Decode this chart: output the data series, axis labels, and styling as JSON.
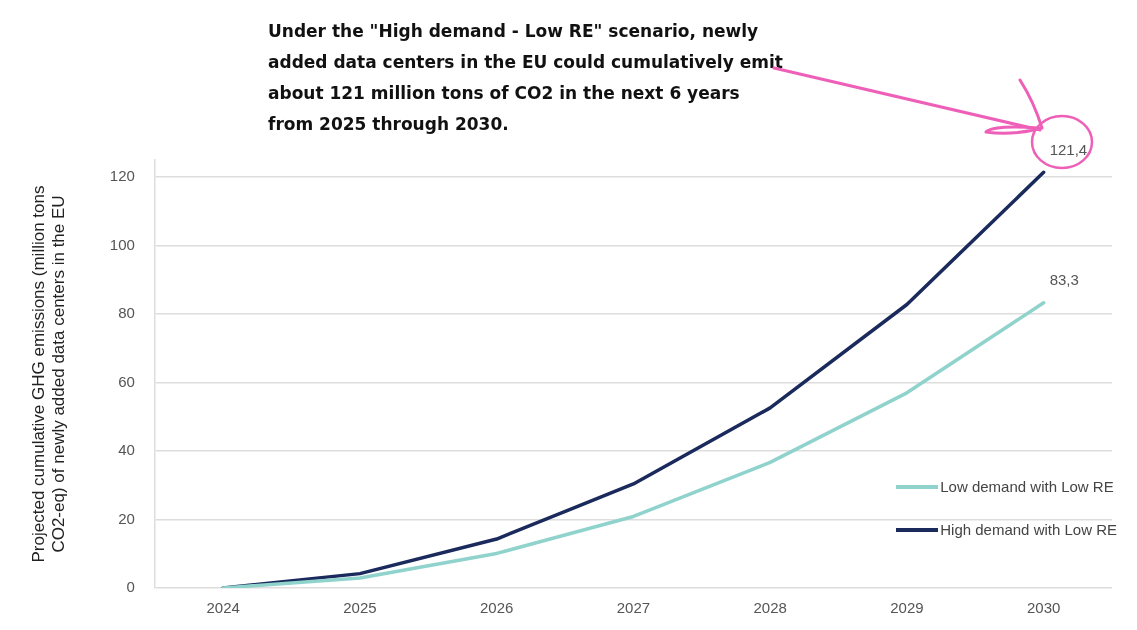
{
  "chart_data": {
    "type": "line",
    "ylabel": "Projected cumulative GHG emissions (million tons CO2-eq) of newly added data centers in the EU",
    "categories": [
      "2024",
      "2025",
      "2026",
      "2027",
      "2028",
      "2029",
      "2030"
    ],
    "series": [
      {
        "name": "Low demand with Low RE",
        "color": "#8fd3cc",
        "values": [
          0,
          2.9,
          10.1,
          20.9,
          36.7,
          57,
          83.3
        ],
        "value_labels": [
          null,
          null,
          null,
          null,
          null,
          null,
          "83,3"
        ]
      },
      {
        "name": "High demand with Low RE",
        "color": "#1b2a5c",
        "values": [
          0,
          4.2,
          14.3,
          30.4,
          52.6,
          82.8,
          121.4
        ],
        "value_labels": [
          null,
          null,
          null,
          null,
          null,
          null,
          "121,4"
        ]
      }
    ],
    "ylim": [
      0,
      125
    ],
    "yticks": [
      0,
      20,
      40,
      60,
      80,
      100,
      120
    ],
    "grid": "y",
    "legend": "bottom right",
    "marker": "none",
    "line_style": "solid",
    "annotations": [
      "Under the \"High demand - Low RE\" scenario, newly added data centers in the EU could cumulatively emit about 121 million tons of CO2 in the next 6 years from 2025 through 2030."
    ]
  }
}
